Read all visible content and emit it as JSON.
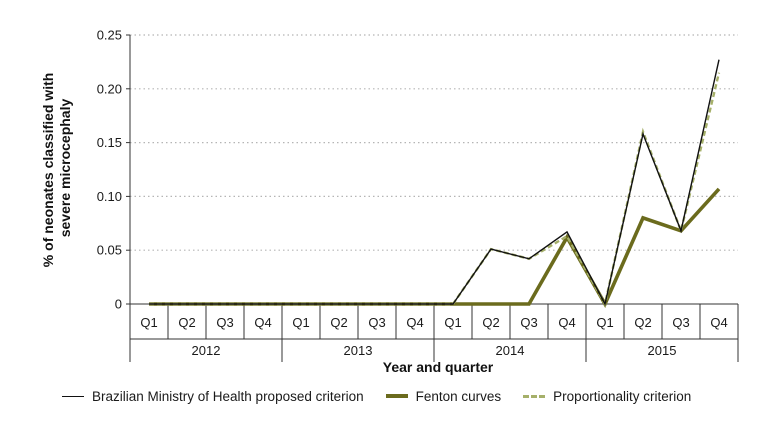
{
  "chart_data": {
    "type": "line",
    "title": "",
    "xlabel": "Year and quarter",
    "ylabel": "% of neonates classified with severe microcephaly",
    "ylabel_lines": [
      "% of neonates classified with",
      "severe  microcephaly"
    ],
    "ylim": [
      0,
      0.25
    ],
    "yticks": [
      "0",
      "0.05",
      "0.10",
      "0.15",
      "0.20",
      "0.25"
    ],
    "ytick_values": [
      0,
      0.05,
      0.1,
      0.15,
      0.2,
      0.25
    ],
    "grid": "horizontal dotted",
    "quarters": [
      "Q1",
      "Q2",
      "Q3",
      "Q4",
      "Q1",
      "Q2",
      "Q3",
      "Q4",
      "Q1",
      "Q2",
      "Q3",
      "Q4",
      "Q1",
      "Q2",
      "Q3",
      "Q4"
    ],
    "years": [
      "2012",
      "2013",
      "2014",
      "2015"
    ],
    "series": [
      {
        "name": "Brazilian Ministry of Health proposed criterion",
        "color": "#111111",
        "values": [
          0,
          0,
          0,
          0,
          0,
          0,
          0,
          0,
          0,
          0.051,
          0.042,
          0.067,
          0,
          0.158,
          0.068,
          0.227
        ]
      },
      {
        "name": "Fenton curves",
        "color": "#6b6b1d",
        "values": [
          0,
          0,
          0,
          0,
          0,
          0,
          0,
          0,
          0,
          0,
          0,
          0.062,
          0,
          0.08,
          0.068,
          0.107
        ]
      },
      {
        "name": "Proportionality criterion",
        "color": "#a6b06a",
        "values": [
          0,
          0,
          0,
          0,
          0,
          0,
          0,
          0,
          0,
          0.051,
          0.042,
          0.063,
          0,
          0.16,
          0.068,
          0.215
        ]
      }
    ]
  }
}
